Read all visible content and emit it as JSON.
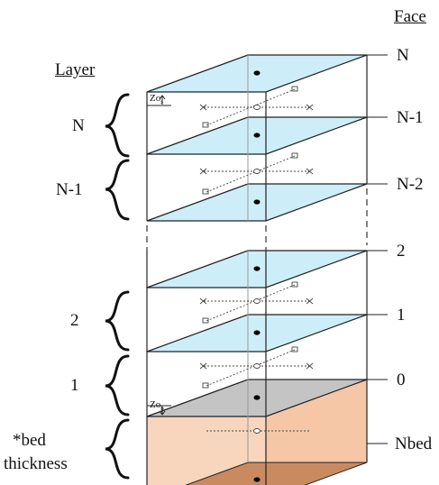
{
  "face_header": "Face",
  "layer_header": "Layer",
  "faces": [
    "N",
    "N-1",
    "N-2",
    "2",
    "1",
    "0",
    "Nbed"
  ],
  "layers": [
    "N",
    "N-1",
    "2",
    "1"
  ],
  "bed_label": {
    "line1": "*bed",
    "line2": "thickness"
  },
  "roughness": {
    "surface": {
      "base": "Zo",
      "sub": "s"
    },
    "bottom": {
      "base": "Zo",
      "sub": "b"
    }
  },
  "colors": {
    "water_plane": "#cdeef8",
    "bottom_plane": "#c4c4c4",
    "bed_fill": "#f8cfb2",
    "bed_bottom": "#c98a60",
    "line": "#222222"
  }
}
